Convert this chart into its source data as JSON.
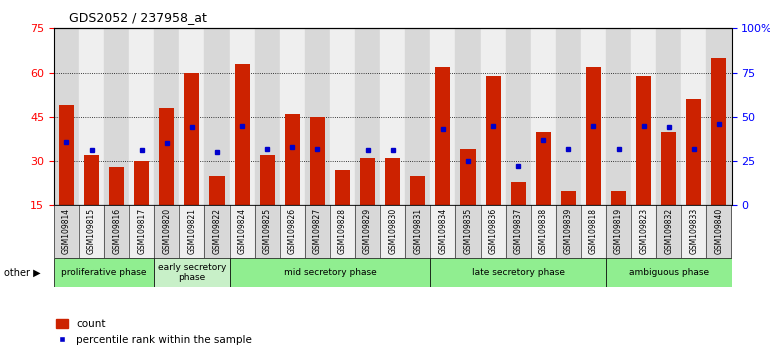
{
  "title": "GDS2052 / 237958_at",
  "samples": [
    "GSM109814",
    "GSM109815",
    "GSM109816",
    "GSM109817",
    "GSM109820",
    "GSM109821",
    "GSM109822",
    "GSM109824",
    "GSM109825",
    "GSM109826",
    "GSM109827",
    "GSM109828",
    "GSM109829",
    "GSM109830",
    "GSM109831",
    "GSM109834",
    "GSM109835",
    "GSM109836",
    "GSM109837",
    "GSM109838",
    "GSM109839",
    "GSM109818",
    "GSM109819",
    "GSM109823",
    "GSM109832",
    "GSM109833",
    "GSM109840"
  ],
  "count_vals": [
    49,
    32,
    28,
    30,
    48,
    60,
    25,
    63,
    32,
    46,
    45,
    27,
    31,
    31,
    25,
    62,
    34,
    59,
    23,
    40,
    20,
    62,
    20,
    59,
    40,
    51,
    65
  ],
  "pct_vals": [
    36,
    31,
    null,
    31,
    35,
    44,
    30,
    45,
    32,
    33,
    32,
    null,
    31,
    31,
    null,
    43,
    25,
    45,
    22,
    37,
    32,
    45,
    32,
    45,
    44,
    32,
    46
  ],
  "phases": [
    {
      "label": "proliferative phase",
      "start": 0,
      "end": 4,
      "color": "#90EE90"
    },
    {
      "label": "early secretory\nphase",
      "start": 4,
      "end": 7,
      "color": "#c8f0c8"
    },
    {
      "label": "mid secretory phase",
      "start": 7,
      "end": 15,
      "color": "#90EE90"
    },
    {
      "label": "late secretory phase",
      "start": 15,
      "end": 22,
      "color": "#90EE90"
    },
    {
      "label": "ambiguous phase",
      "start": 22,
      "end": 27,
      "color": "#90EE90"
    }
  ],
  "bar_color": "#cc2200",
  "percentile_color": "#0000cc",
  "ylim_left": [
    15,
    75
  ],
  "ylim_right": [
    0,
    100
  ],
  "yticks_left": [
    15,
    30,
    45,
    60,
    75
  ],
  "yticks_right": [
    0,
    25,
    50,
    75,
    100
  ],
  "grid_lines": [
    30,
    45,
    60
  ],
  "background_color": "#ffffff",
  "legend_count_label": "count",
  "legend_percentile_label": "percentile rank within the sample",
  "other_label": "other"
}
